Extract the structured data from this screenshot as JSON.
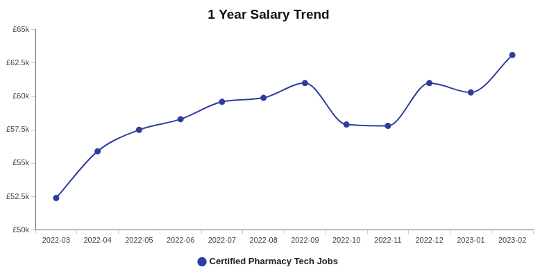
{
  "chart_data": {
    "type": "line",
    "title": "1 Year Salary Trend",
    "categories": [
      "2022-03",
      "2022-04",
      "2022-05",
      "2022-06",
      "2022-07",
      "2022-08",
      "2022-09",
      "2022-10",
      "2022-11",
      "2022-12",
      "2023-01",
      "2023-02"
    ],
    "series": [
      {
        "name": "Certified Pharmacy Tech Jobs",
        "color": "#2e3d9f",
        "marker": "circle",
        "line_style": "solid",
        "values": [
          52400,
          55900,
          57500,
          58300,
          59600,
          59900,
          61000,
          57900,
          57800,
          61000,
          60300,
          63100
        ]
      }
    ],
    "ylim": [
      50000,
      65000
    ],
    "yticks": [
      {
        "value": 50000,
        "label": "£50k"
      },
      {
        "value": 52500,
        "label": "£52.5k"
      },
      {
        "value": 55000,
        "label": "£55k"
      },
      {
        "value": 57500,
        "label": "£57.5k"
      },
      {
        "value": 60000,
        "label": "£60k"
      },
      {
        "value": 62500,
        "label": "£62.5k"
      },
      {
        "value": 65000,
        "label": "£65k"
      }
    ],
    "grid": false,
    "legend": "bottom"
  }
}
